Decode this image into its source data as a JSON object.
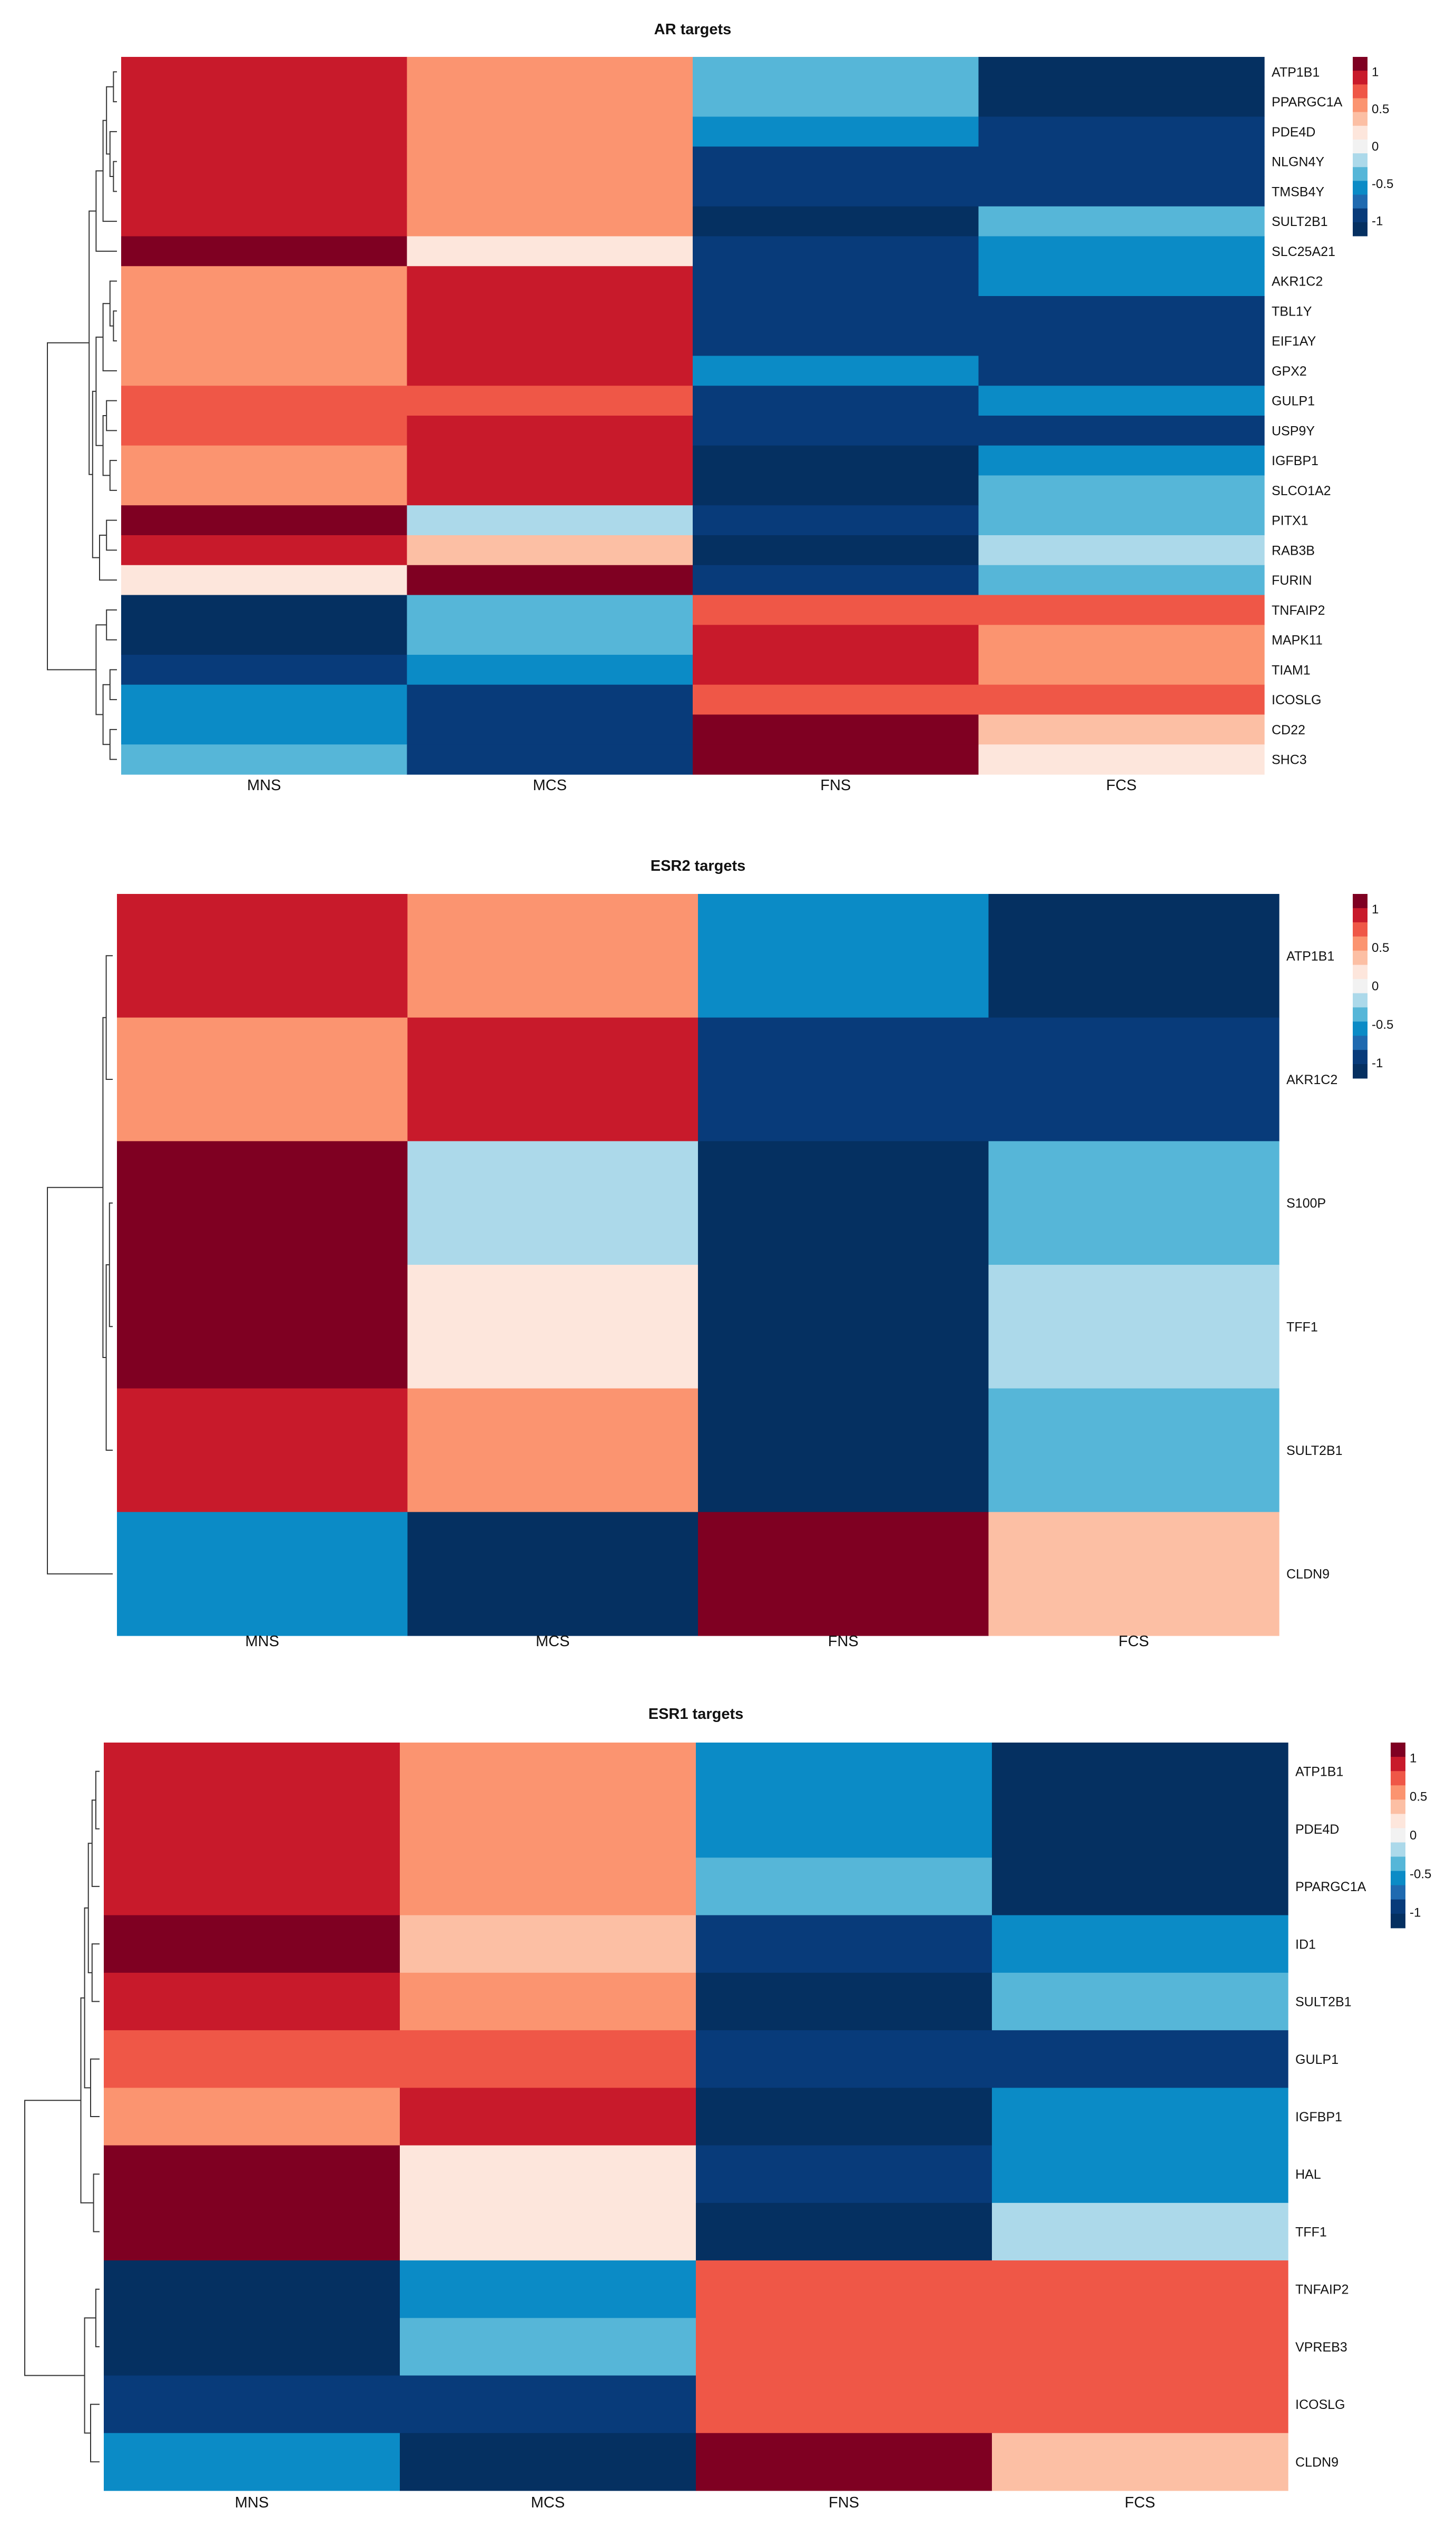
{
  "figure": {
    "description_free": true
  },
  "colors": {
    "scale_values": [
      -1.2,
      -1.0,
      -0.8,
      -0.6,
      -0.4,
      -0.2,
      0,
      0.2,
      0.4,
      0.6,
      0.8,
      1.0,
      1.2
    ],
    "scale_colors": [
      "#053061",
      "#083b7a",
      "#1f6ab0",
      "#0b8bc6",
      "#56b6d8",
      "#acd9ea",
      "#f2f2f2",
      "#fde6dc",
      "#fcbfa4",
      "#fb9470",
      "#ef5747",
      "#c81a2b",
      "#7f0022"
    ]
  },
  "chart_data": [
    {
      "type": "heatmap",
      "title": "AR targets",
      "columns": [
        "MNS",
        "MCS",
        "FNS",
        "FCS"
      ],
      "rows": [
        "ATP1B1",
        "PPARGC1A",
        "PDE4D",
        "NLGN4Y",
        "TMSB4Y",
        "SULT2B1",
        "SLC25A21",
        "AKR1C2",
        "TBL1Y",
        "EIF1AY",
        "GPX2",
        "GULP1",
        "USP9Y",
        "IGFBP1",
        "SLCO1A2",
        "PITX1",
        "RAB3B",
        "FURIN",
        "TNFAIP2",
        "MAPK11",
        "TIAM1",
        "ICOSLG",
        "CD22",
        "SHC3"
      ],
      "values": [
        [
          1.0,
          0.6,
          -0.4,
          -1.2
        ],
        [
          1.0,
          0.6,
          -0.4,
          -1.2
        ],
        [
          1.0,
          0.6,
          -0.6,
          -1.0
        ],
        [
          1.0,
          0.6,
          -1.0,
          -1.0
        ],
        [
          1.0,
          0.6,
          -1.0,
          -1.0
        ],
        [
          1.0,
          0.6,
          -1.2,
          -0.4
        ],
        [
          1.2,
          0.3,
          -1.0,
          -0.6
        ],
        [
          0.6,
          1.0,
          -1.0,
          -0.6
        ],
        [
          0.6,
          1.0,
          -1.0,
          -1.0
        ],
        [
          0.6,
          1.0,
          -1.0,
          -1.0
        ],
        [
          0.6,
          1.0,
          -0.6,
          -1.0
        ],
        [
          0.8,
          0.8,
          -1.0,
          -0.6
        ],
        [
          0.8,
          1.0,
          -1.0,
          -1.0
        ],
        [
          0.6,
          1.0,
          -1.2,
          -0.6
        ],
        [
          0.6,
          1.0,
          -1.2,
          -0.4
        ],
        [
          1.2,
          -0.1,
          -1.0,
          -0.4
        ],
        [
          1.0,
          0.4,
          -1.2,
          -0.2
        ],
        [
          0.2,
          1.2,
          -1.0,
          -0.4
        ],
        [
          -1.2,
          -0.4,
          0.8,
          0.8
        ],
        [
          -1.2,
          -0.4,
          1.0,
          0.6
        ],
        [
          -1.0,
          -0.6,
          1.0,
          0.6
        ],
        [
          -0.6,
          -1.0,
          0.8,
          0.8
        ],
        [
          -0.6,
          -1.0,
          1.2,
          0.4
        ],
        [
          -0.4,
          -1.0,
          1.2,
          0.2
        ]
      ],
      "legend_ticks": [
        "1",
        "0.5",
        "0",
        "-0.5",
        "-1"
      ],
      "legend_tick_values": [
        1,
        0.5,
        0,
        -0.5,
        -1
      ],
      "legend_range": [
        -1.2,
        1.2
      ],
      "dendrogram": [
        {
          "a": 0,
          "b": 1,
          "h": 0.05
        },
        {
          "a": 3,
          "b": 4,
          "h": 0.05
        },
        {
          "a": 2,
          "b": "u1",
          "h": 0.1
        },
        {
          "a": "u0",
          "b": "u2",
          "h": 0.15
        },
        {
          "a": 5,
          "b": "u3",
          "h": 0.2
        },
        {
          "a": 6,
          "b": "u4",
          "h": 0.3
        },
        {
          "a": 8,
          "b": 9,
          "h": 0.05
        },
        {
          "a": 7,
          "b": "u6",
          "h": 0.1
        },
        {
          "a": 10,
          "b": "u7",
          "h": 0.2
        },
        {
          "a": 11,
          "b": 12,
          "h": 0.15
        },
        {
          "a": 13,
          "b": 14,
          "h": 0.1
        },
        {
          "a": "u9",
          "b": "u10",
          "h": 0.2
        },
        {
          "a": "u8",
          "b": "u11",
          "h": 0.3
        },
        {
          "a": 15,
          "b": 16,
          "h": 0.15
        },
        {
          "a": "u13",
          "b": 17,
          "h": 0.25
        },
        {
          "a": "u12",
          "b": "u14",
          "h": 0.35
        },
        {
          "a": "u5",
          "b": "u15",
          "h": 0.4
        },
        {
          "a": 18,
          "b": 19,
          "h": 0.15
        },
        {
          "a": 20,
          "b": 21,
          "h": 0.1
        },
        {
          "a": 22,
          "b": 23,
          "h": 0.1
        },
        {
          "a": "u18",
          "b": "u19",
          "h": 0.2
        },
        {
          "a": "u17",
          "b": "u20",
          "h": 0.3
        },
        {
          "a": "u16",
          "b": "u21",
          "h": 1.0
        }
      ]
    },
    {
      "type": "heatmap",
      "title": "ESR2 targets",
      "columns": [
        "MNS",
        "MCS",
        "FNS",
        "FCS"
      ],
      "rows": [
        "ATP1B1",
        "AKR1C2",
        "S100P",
        "TFF1",
        "SULT2B1",
        "CLDN9"
      ],
      "values": [
        [
          1.0,
          0.6,
          -0.6,
          -1.2
        ],
        [
          0.6,
          1.0,
          -1.0,
          -1.0
        ],
        [
          1.2,
          -0.1,
          -1.2,
          -0.4
        ],
        [
          1.2,
          0.2,
          -1.2,
          -0.2
        ],
        [
          1.0,
          0.6,
          -1.2,
          -0.4
        ],
        [
          -0.6,
          -1.2,
          1.2,
          0.4
        ]
      ],
      "legend_ticks": [
        "1",
        "0.5",
        "0",
        "-0.5",
        "-1"
      ],
      "legend_tick_values": [
        1,
        0.5,
        0,
        -0.5,
        -1
      ],
      "legend_range": [
        -1.2,
        1.2
      ],
      "dendrogram": [
        {
          "a": 0,
          "b": 1,
          "h": 0.1
        },
        {
          "a": 2,
          "b": 3,
          "h": 0.05
        },
        {
          "a": "u1",
          "b": 4,
          "h": 0.1
        },
        {
          "a": "u0",
          "b": "u2",
          "h": 0.15
        },
        {
          "a": "u3",
          "b": 5,
          "h": 1.0
        }
      ]
    },
    {
      "type": "heatmap",
      "title": "ESR1 targets",
      "columns": [
        "MNS",
        "MCS",
        "FNS",
        "FCS"
      ],
      "rows": [
        "ATP1B1",
        "PDE4D",
        "PPARGC1A",
        "ID1",
        "SULT2B1",
        "GULP1",
        "IGFBP1",
        "HAL",
        "TFF1",
        "TNFAIP2",
        "VPREB3",
        "ICOSLG",
        "CLDN9"
      ],
      "values": [
        [
          1.0,
          0.6,
          -0.6,
          -1.2
        ],
        [
          1.0,
          0.6,
          -0.6,
          -1.2
        ],
        [
          1.0,
          0.6,
          -0.4,
          -1.2
        ],
        [
          1.2,
          0.4,
          -1.0,
          -0.6
        ],
        [
          1.0,
          0.6,
          -1.2,
          -0.4
        ],
        [
          0.8,
          0.8,
          -1.0,
          -1.0
        ],
        [
          0.6,
          1.0,
          -1.2,
          -0.6
        ],
        [
          1.2,
          0.2,
          -1.0,
          -0.6
        ],
        [
          1.2,
          0.2,
          -1.2,
          -0.2
        ],
        [
          -1.2,
          -0.6,
          0.8,
          0.8
        ],
        [
          -1.2,
          -0.4,
          0.8,
          0.8
        ],
        [
          -1.0,
          -1.0,
          0.8,
          0.8
        ],
        [
          -0.6,
          -1.2,
          1.2,
          0.4
        ]
      ],
      "legend_ticks": [
        "1",
        "0.5",
        "0",
        "-0.5",
        "-1"
      ],
      "legend_tick_values": [
        1,
        0.5,
        0,
        -0.5,
        -1
      ],
      "legend_range": [
        -1.2,
        1.2
      ],
      "dendrogram": [
        {
          "a": 0,
          "b": 1,
          "h": 0.05
        },
        {
          "a": "u0",
          "b": 2,
          "h": 0.1
        },
        {
          "a": 3,
          "b": 4,
          "h": 0.1
        },
        {
          "a": "u1",
          "b": "u2",
          "h": 0.15
        },
        {
          "a": 5,
          "b": 6,
          "h": 0.12
        },
        {
          "a": "u3",
          "b": "u4",
          "h": 0.2
        },
        {
          "a": 7,
          "b": 8,
          "h": 0.08
        },
        {
          "a": "u5",
          "b": "u6",
          "h": 0.25
        },
        {
          "a": 9,
          "b": 10,
          "h": 0.05
        },
        {
          "a": 11,
          "b": 12,
          "h": 0.12
        },
        {
          "a": "u8",
          "b": "u9",
          "h": 0.2
        },
        {
          "a": "u7",
          "b": "u10",
          "h": 1.0
        }
      ]
    }
  ]
}
